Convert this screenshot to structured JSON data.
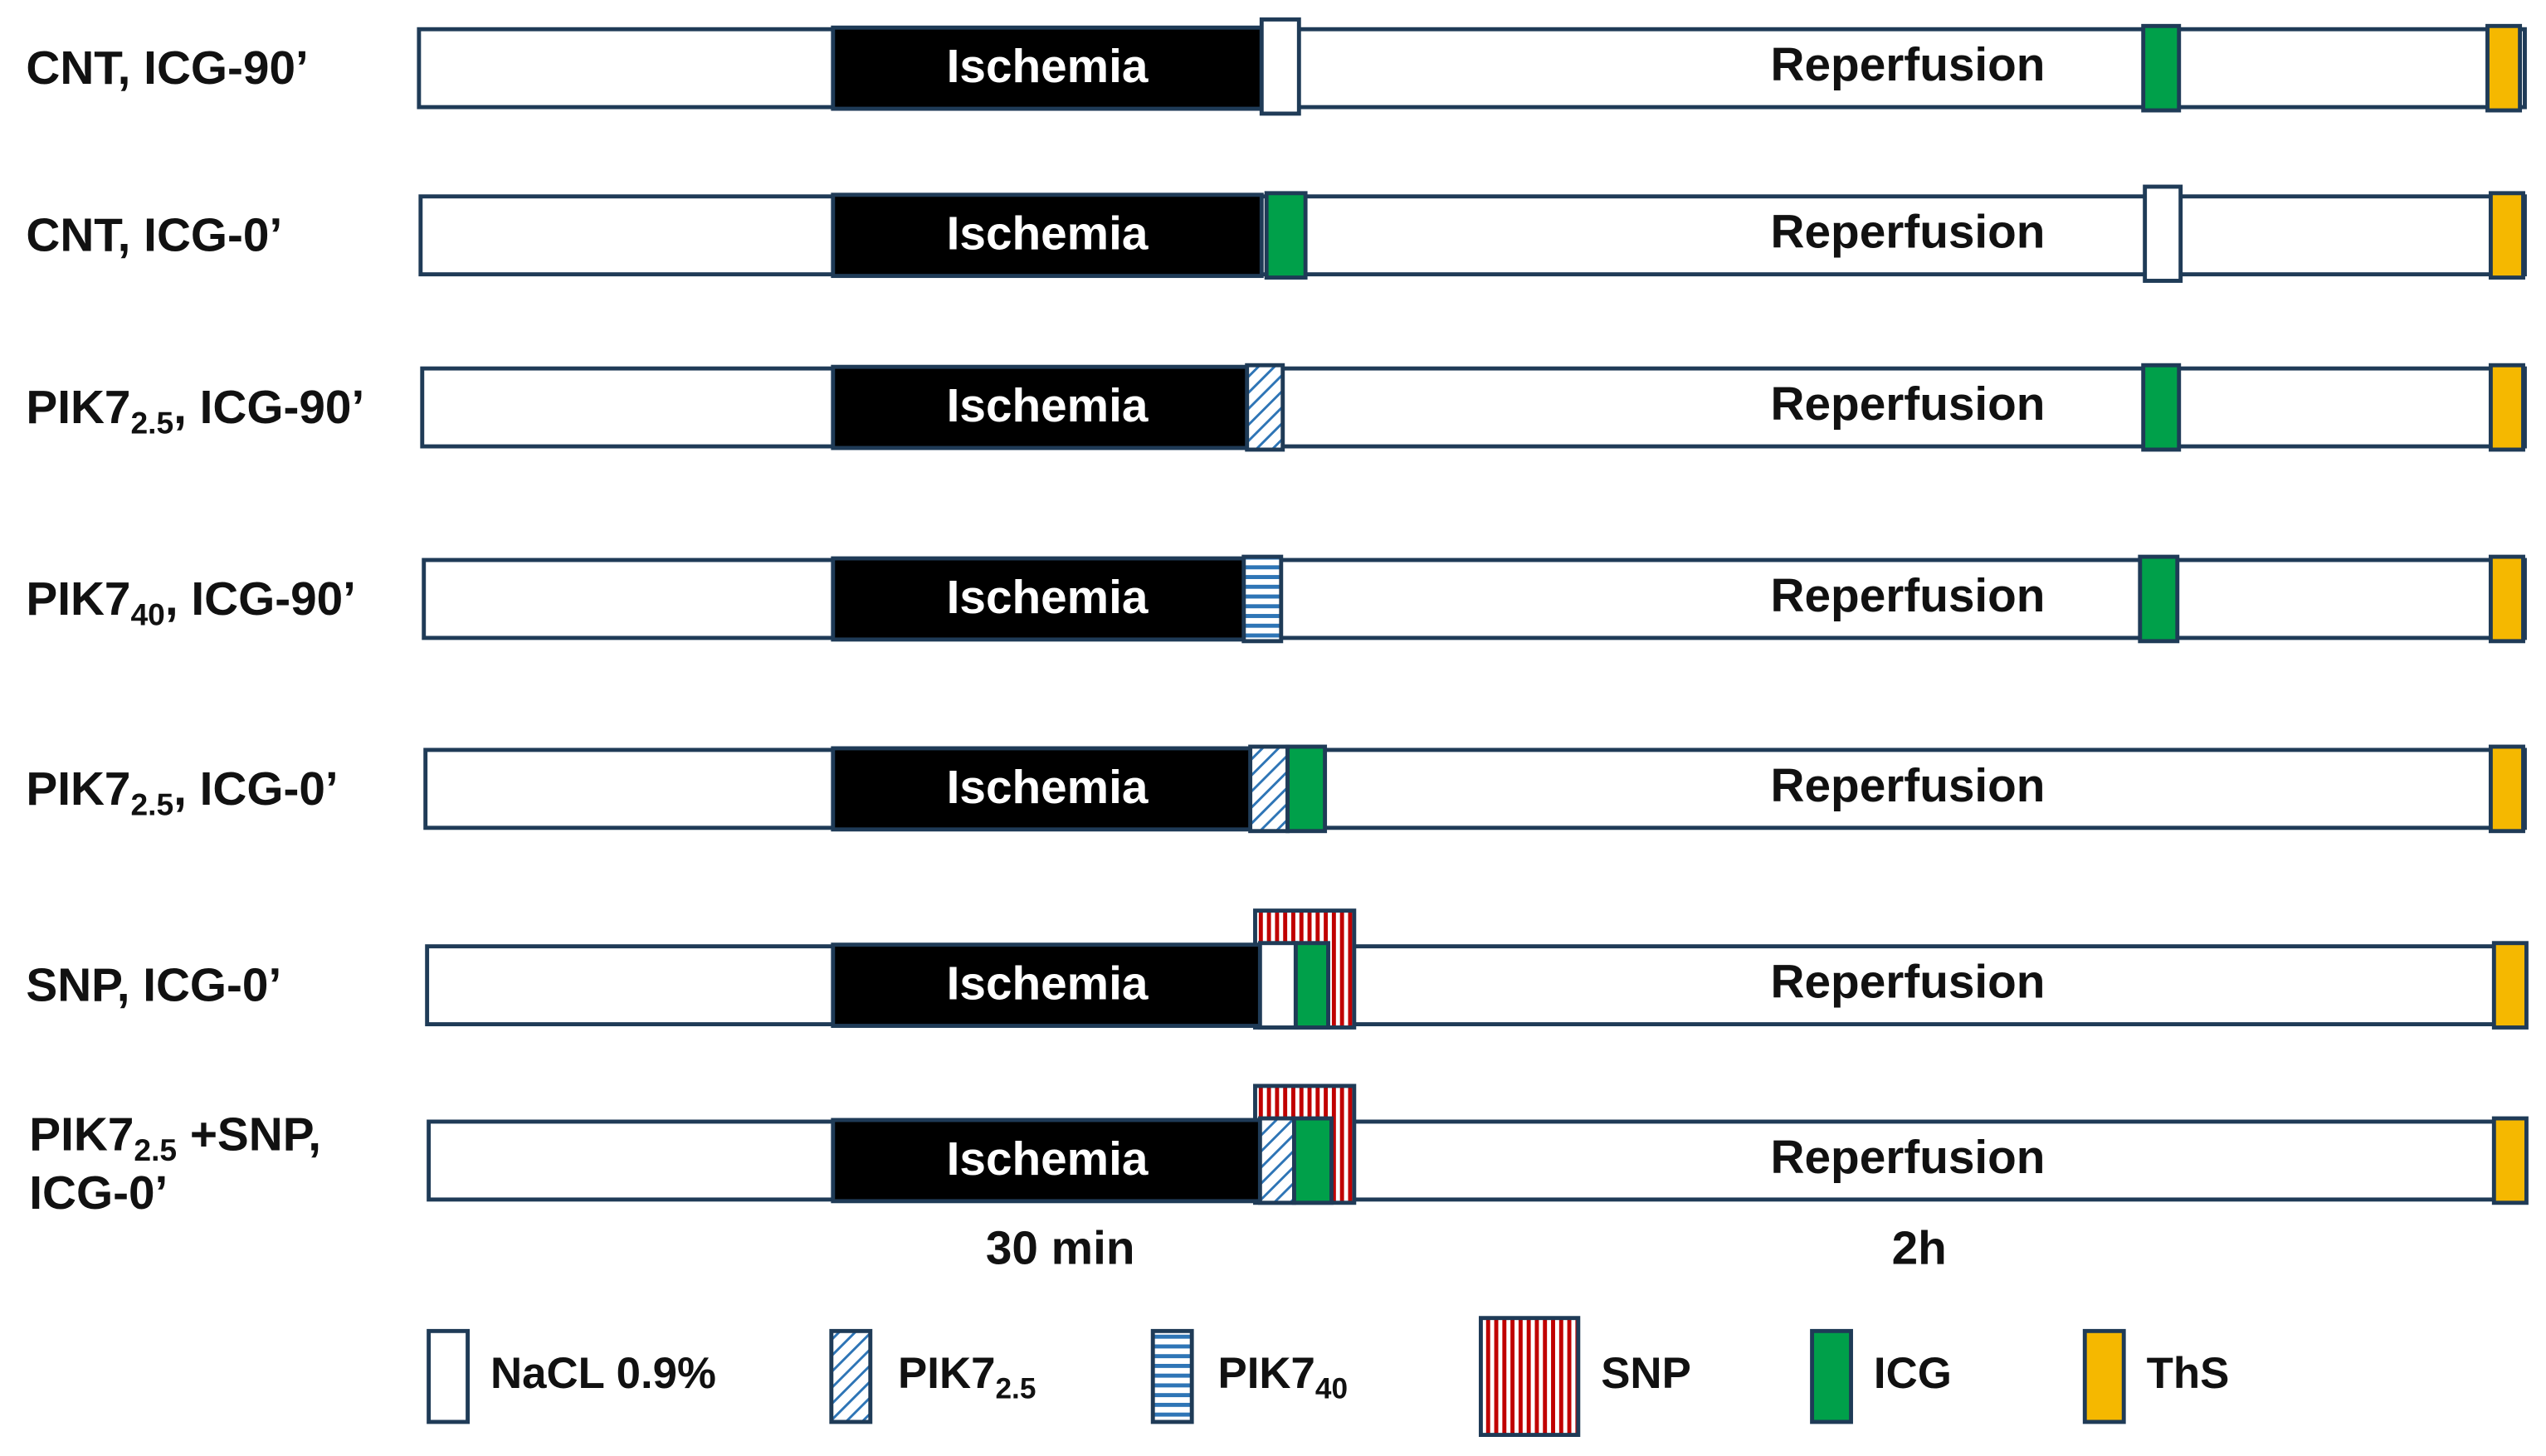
{
  "rows": [
    {
      "label": [
        {
          "text": "CNT, ICG-90’"
        }
      ],
      "ischemia": "Ischemia",
      "reperfusion": "Reperfusion"
    },
    {
      "label": [
        {
          "text": "CNT, ICG-0’"
        }
      ],
      "ischemia": "Ischemia",
      "reperfusion": "Reperfusion"
    },
    {
      "label": [
        {
          "text": "PIK7"
        },
        {
          "sub": "2.5"
        },
        {
          "text": ", ICG-90’"
        }
      ],
      "ischemia": "Ischemia",
      "reperfusion": "Reperfusion"
    },
    {
      "label": [
        {
          "text": "PIK7"
        },
        {
          "sub": "40"
        },
        {
          "text": ", ICG-90’"
        }
      ],
      "ischemia": "Ischemia",
      "reperfusion": "Reperfusion"
    },
    {
      "label": [
        {
          "text": "PIK7"
        },
        {
          "sub": "2.5"
        },
        {
          "text": ", ICG-0’"
        }
      ],
      "ischemia": "Ischemia",
      "reperfusion": "Reperfusion"
    },
    {
      "label": [
        {
          "text": "SNP, ICG-0’"
        }
      ],
      "ischemia": "Ischemia",
      "reperfusion": "Reperfusion"
    },
    {
      "label": [
        {
          "text": "PIK7"
        },
        {
          "sub": "2.5"
        },
        {
          "text": " +SNP,"
        }
      ],
      "label_line2": "ICG-0’",
      "ischemia": "Ischemia",
      "reperfusion": "Reperfusion"
    }
  ],
  "timeline": {
    "ischemia_duration": "30 min",
    "reperfusion_duration": "2h"
  },
  "legend": [
    {
      "parts": [
        {
          "text": "NaCL 0.9%"
        }
      ]
    },
    {
      "parts": [
        {
          "text": "PIK7"
        },
        {
          "sub": "2.5"
        }
      ]
    },
    {
      "parts": [
        {
          "text": "PIK7"
        },
        {
          "sub": "40"
        }
      ]
    },
    {
      "parts": [
        {
          "text": "SNP"
        }
      ]
    },
    {
      "parts": [
        {
          "text": "ICG"
        }
      ]
    },
    {
      "parts": [
        {
          "text": "ThS"
        }
      ]
    }
  ]
}
